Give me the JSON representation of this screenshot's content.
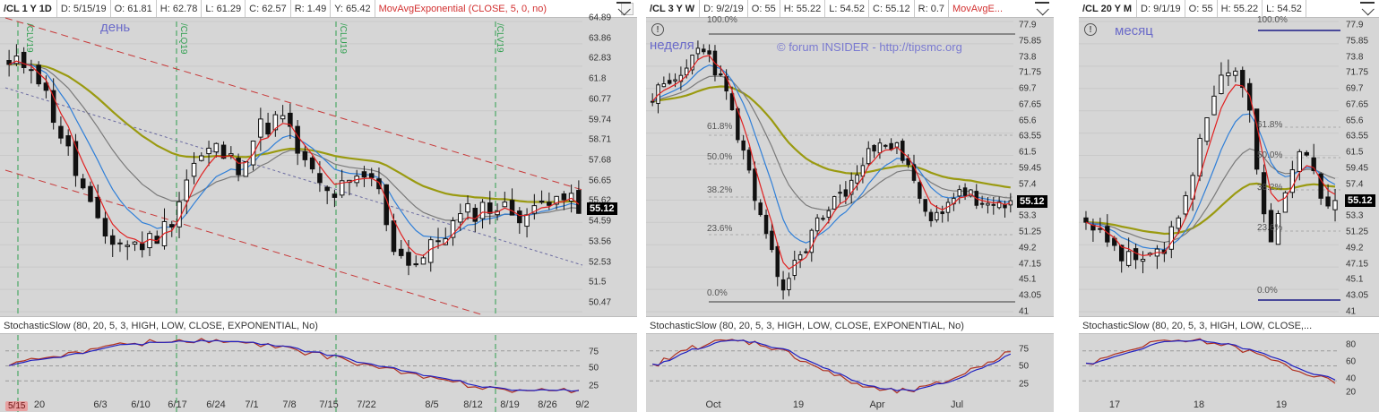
{
  "panels": [
    {
      "symbol": "/CL 1 Y 1D",
      "date": "D: 5/15/19",
      "open": "O: 61.81",
      "high": "H: 62.78",
      "low": "L: 61.29",
      "close": "C: 62.57",
      "range": "R: 1.49",
      "volume": "Y: 65.42",
      "study": "MovAvgExponential (CLOSE, 5, 0, no)",
      "overlay_label": "день",
      "price_tag": "55.12",
      "y_labels": [
        "64.89",
        "63.86",
        "62.83",
        "61.8",
        "60.77",
        "59.74",
        "58.71",
        "57.68",
        "56.65",
        "55.62",
        "54.59",
        "53.56",
        "52.53",
        "51.5",
        "50.47"
      ],
      "contract_markers": [
        "/CLQ19",
        "/CLU19",
        "/CLV19"
      ],
      "lower_title": "StochasticSlow (80, 20, 5, 3, HIGH, LOW, CLOSE, EXPONENTIAL, No)",
      "stoch_labels": [
        "75",
        "50",
        "25"
      ],
      "date_badge": "5/15",
      "x_labels": [
        "20",
        "6/3",
        "6/10",
        "6/17",
        "6/24",
        "7/1",
        "7/8",
        "7/15",
        "7/22",
        "8/5",
        "8/12",
        "8/19",
        "8/26",
        "9/2"
      ]
    },
    {
      "symbol": "/CL 3 Y W",
      "date": "D: 9/2/19",
      "open": "O: 55",
      "high": "H: 55.22",
      "low": "L: 54.52",
      "close": "C: 55.12",
      "range": "R: 0.7",
      "study": "MovAvgE...",
      "overlay_label": "неделя",
      "watermark": "© forum INSIDER - http://tipsmc.org",
      "price_tag": "55.12",
      "y_labels": [
        "77.9",
        "75.85",
        "73.8",
        "71.75",
        "69.7",
        "67.65",
        "65.6",
        "63.55",
        "61.5",
        "59.45",
        "57.4",
        "55.35",
        "53.3",
        "51.25",
        "49.2",
        "47.15",
        "45.1",
        "43.05",
        "41"
      ],
      "fib_labels": [
        "100.0%",
        "61.8%",
        "50.0%",
        "38.2%",
        "23.6%",
        "0.0%"
      ],
      "lower_title": "StochasticSlow (80, 20, 5, 3, HIGH, LOW, CLOSE, EXPONENTIAL, No)",
      "stoch_labels": [
        "75",
        "50",
        "25"
      ],
      "x_labels": [
        "Oct",
        "19",
        "Apr",
        "Jul"
      ]
    },
    {
      "symbol": "/CL 20 Y M",
      "date": "D: 9/1/19",
      "open": "O: 55",
      "high": "H: 55.22",
      "low": "L: 54.52",
      "overlay_label": "месяц",
      "price_tag": "55.12",
      "y_labels": [
        "77.9",
        "75.85",
        "73.8",
        "71.75",
        "69.7",
        "67.65",
        "65.6",
        "63.55",
        "61.5",
        "59.45",
        "57.4",
        "55.35",
        "53.3",
        "51.25",
        "49.2",
        "47.15",
        "45.1",
        "43.05",
        "41"
      ],
      "fib_labels": [
        "100.0%",
        "61.8%",
        "50.0%",
        "38.2%",
        "23.6%",
        "0.0%"
      ],
      "lower_title": "StochasticSlow (80, 20, 5, 3, HIGH, LOW, CLOSE,...",
      "stoch_labels": [
        "80",
        "60",
        "40",
        "20"
      ],
      "x_labels": [
        "17",
        "18",
        "19"
      ]
    }
  ],
  "colors": {
    "ema_fast": "#e02020",
    "ema_mid": "#2f7fd8",
    "ema_slow": "#7a7a7a",
    "ema_long": "#9a9a10",
    "channel": "#c83a3a",
    "stoch_k": "#2020c0",
    "stoch_d": "#b03020"
  }
}
